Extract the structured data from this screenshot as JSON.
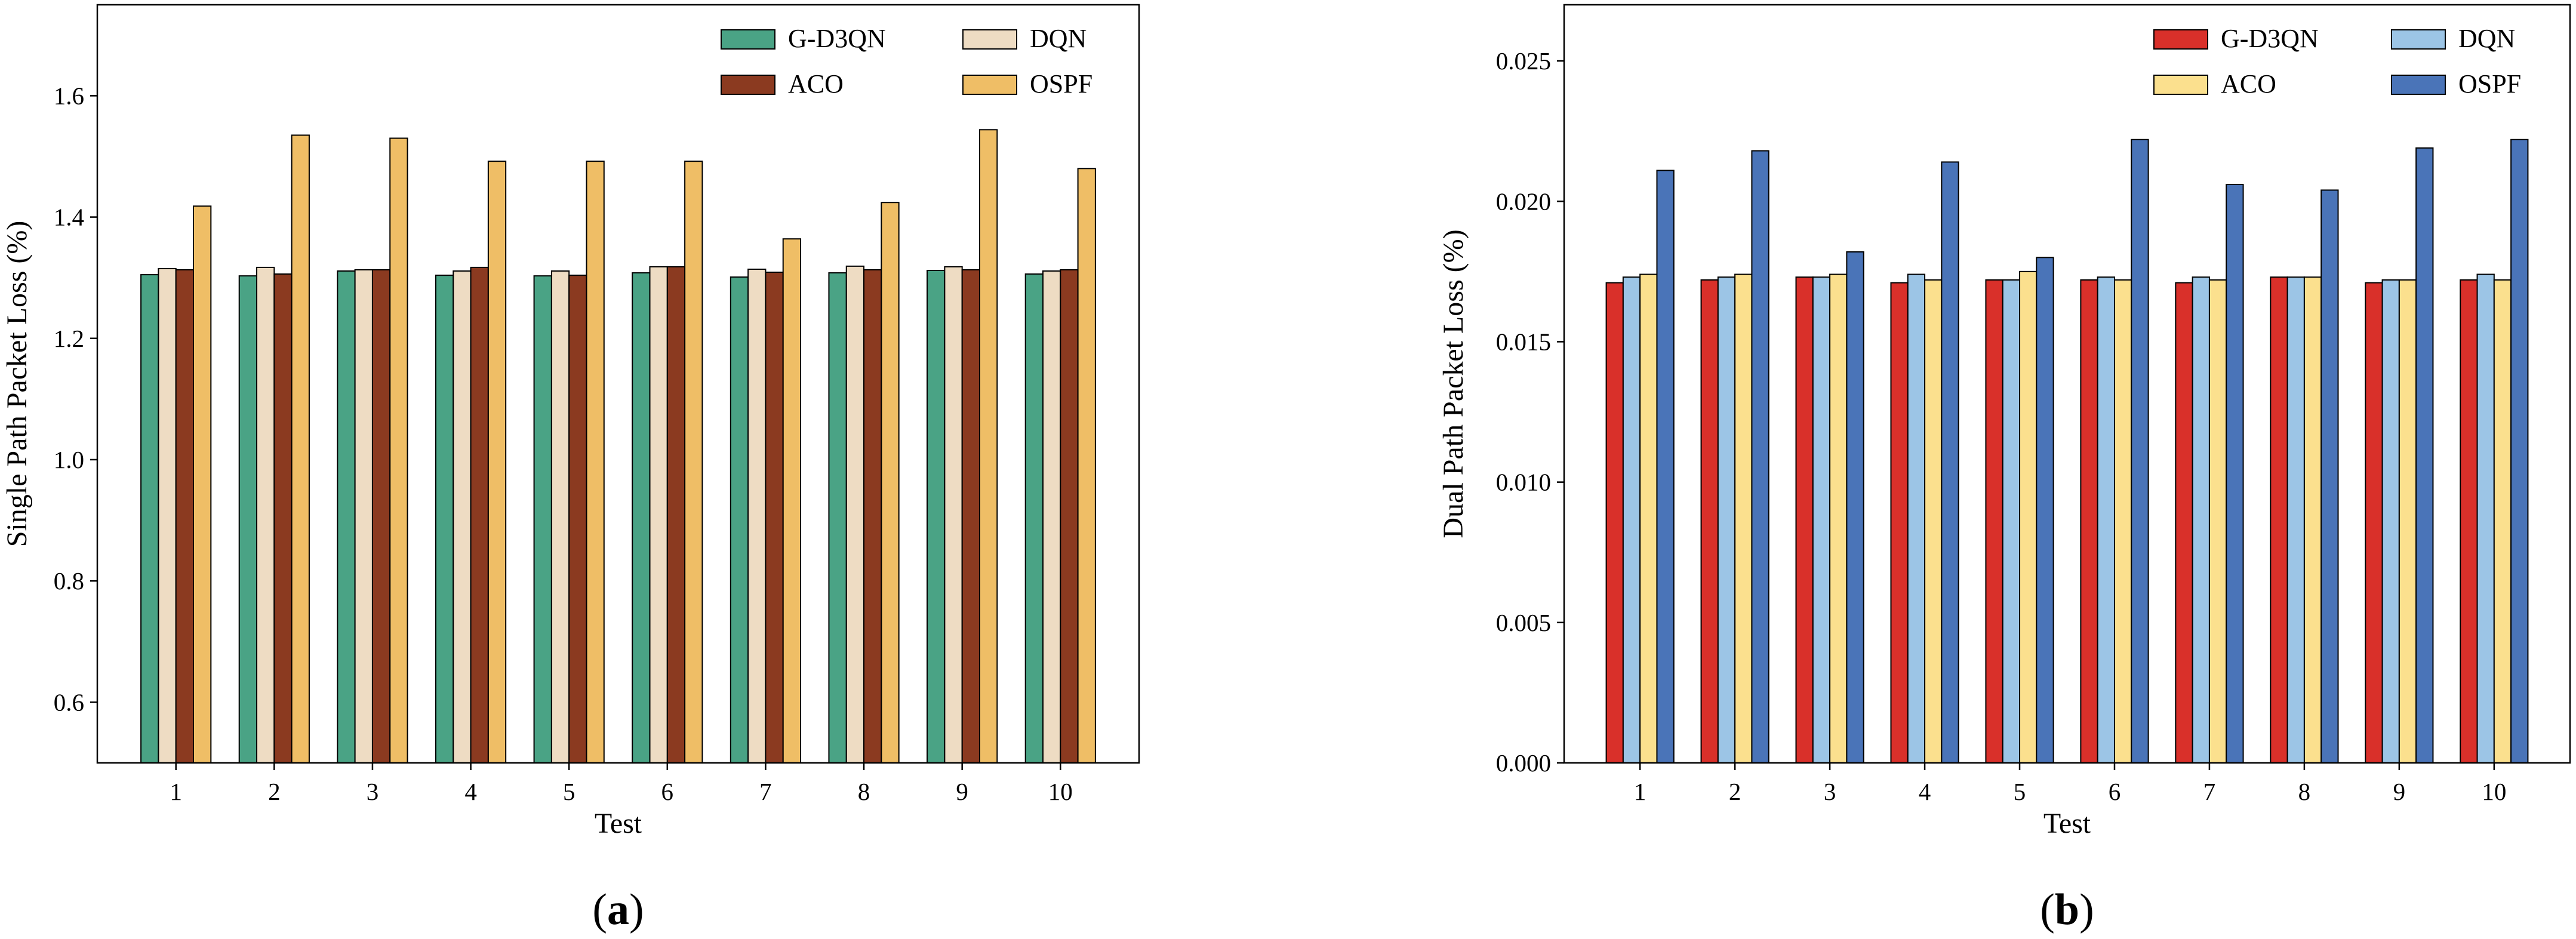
{
  "chart_data": [
    {
      "type": "bar",
      "panel_label": "(a)",
      "xlabel": "Test",
      "ylabel": "Single Path Packet Loss (%)",
      "ylim": [
        0.5,
        1.75
      ],
      "yticks": [
        0.6,
        0.8,
        1.0,
        1.2,
        1.4,
        1.6
      ],
      "ytick_labels": [
        "0.6",
        "0.8",
        "1.0",
        "1.2",
        "1.4",
        "1.6"
      ],
      "categories": [
        "1",
        "2",
        "3",
        "4",
        "5",
        "6",
        "7",
        "8",
        "9",
        "10"
      ],
      "legend_position": "top-right",
      "legend_columns": 2,
      "series": [
        {
          "name": "G-D3QN",
          "color": "#4aa385",
          "values": [
            1.305,
            1.303,
            1.311,
            1.304,
            1.303,
            1.308,
            1.301,
            1.308,
            1.312,
            1.306
          ]
        },
        {
          "name": "DQN",
          "color": "#eedcc3",
          "values": [
            1.315,
            1.317,
            1.313,
            1.311,
            1.311,
            1.318,
            1.314,
            1.319,
            1.318,
            1.311
          ]
        },
        {
          "name": "ACO",
          "color": "#8b3a20",
          "values": [
            1.313,
            1.306,
            1.313,
            1.317,
            1.304,
            1.318,
            1.309,
            1.313,
            1.313,
            1.313
          ]
        },
        {
          "name": "OSPF",
          "color": "#efbe66",
          "values": [
            1.418,
            1.535,
            1.53,
            1.492,
            1.492,
            1.492,
            1.364,
            1.424,
            1.544,
            1.48
          ]
        }
      ]
    },
    {
      "type": "bar",
      "panel_label": "(b)",
      "xlabel": "Test",
      "ylabel": "Dual Path Packet Loss (%)",
      "ylim": [
        0.0,
        0.027
      ],
      "yticks": [
        0.0,
        0.005,
        0.01,
        0.015,
        0.02,
        0.025
      ],
      "ytick_labels": [
        "0.000",
        "0.005",
        "0.010",
        "0.015",
        "0.020",
        "0.025"
      ],
      "categories": [
        "1",
        "2",
        "3",
        "4",
        "5",
        "6",
        "7",
        "8",
        "9",
        "10"
      ],
      "legend_position": "top-right",
      "legend_columns": 2,
      "series": [
        {
          "name": "G-D3QN",
          "color": "#d9302a",
          "values": [
            0.0171,
            0.0172,
            0.0173,
            0.0171,
            0.0172,
            0.0172,
            0.0171,
            0.0173,
            0.0171,
            0.0172
          ]
        },
        {
          "name": "DQN",
          "color": "#9cc5e6",
          "values": [
            0.0173,
            0.0173,
            0.0173,
            0.0174,
            0.0172,
            0.0173,
            0.0173,
            0.0173,
            0.0172,
            0.0174
          ]
        },
        {
          "name": "ACO",
          "color": "#fbe08e",
          "values": [
            0.0174,
            0.0174,
            0.0174,
            0.0172,
            0.0175,
            0.0172,
            0.0172,
            0.0173,
            0.0172,
            0.0172
          ]
        },
        {
          "name": "OSPF",
          "color": "#4a74b8",
          "values": [
            0.0211,
            0.0218,
            0.0182,
            0.0214,
            0.018,
            0.0222,
            0.0206,
            0.0204,
            0.0219,
            0.0222
          ]
        }
      ]
    }
  ]
}
